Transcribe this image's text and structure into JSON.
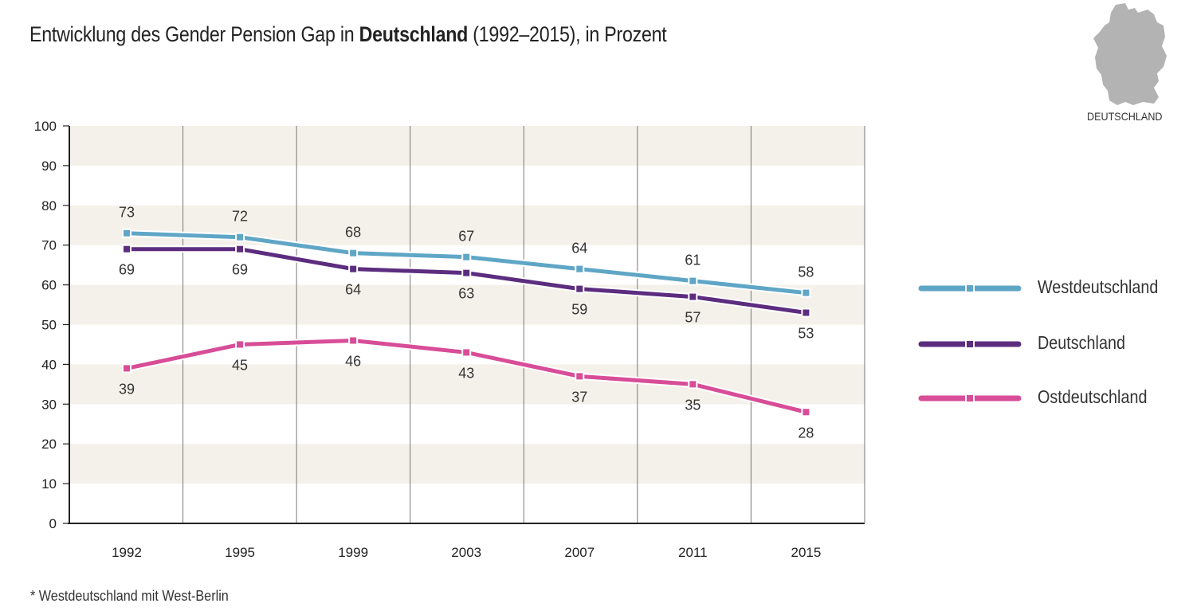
{
  "title": {
    "prefix": "Entwicklung des Gender Pension Gap in",
    "bold": "Deutschland",
    "suffix": "(1992–2015), in Prozent"
  },
  "map": {
    "label": "DEUTSCHLAND"
  },
  "footnote": "* Westdeutschland mit West-Berlin",
  "colors": {
    "west": "#5fa6c6",
    "germany": "#5c2d7f",
    "east": "#d84d97",
    "band": "#f4f1ea",
    "axis": "#222222",
    "grid": "#777777"
  },
  "chart_data": {
    "type": "line",
    "title": "Entwicklung des Gender Pension Gap in Deutschland (1992–2015), in Prozent",
    "xlabel": "",
    "ylabel": "",
    "categories": [
      "1992",
      "1995",
      "1999",
      "2003",
      "2007",
      "2011",
      "2015"
    ],
    "ylim": [
      0,
      100
    ],
    "yticks": [
      0,
      10,
      20,
      30,
      40,
      50,
      60,
      70,
      80,
      90,
      100
    ],
    "legend_position": "right",
    "series": [
      {
        "key": "west",
        "name": "Westdeutschland",
        "values": [
          73,
          72,
          68,
          67,
          64,
          61,
          58
        ],
        "label_side": "above"
      },
      {
        "key": "germany",
        "name": "Deutschland",
        "values": [
          69,
          69,
          64,
          63,
          59,
          57,
          53
        ],
        "label_side": "below"
      },
      {
        "key": "east",
        "name": "Ostdeutschland",
        "values": [
          39,
          45,
          46,
          43,
          37,
          35,
          28
        ],
        "label_side": "below"
      }
    ]
  }
}
